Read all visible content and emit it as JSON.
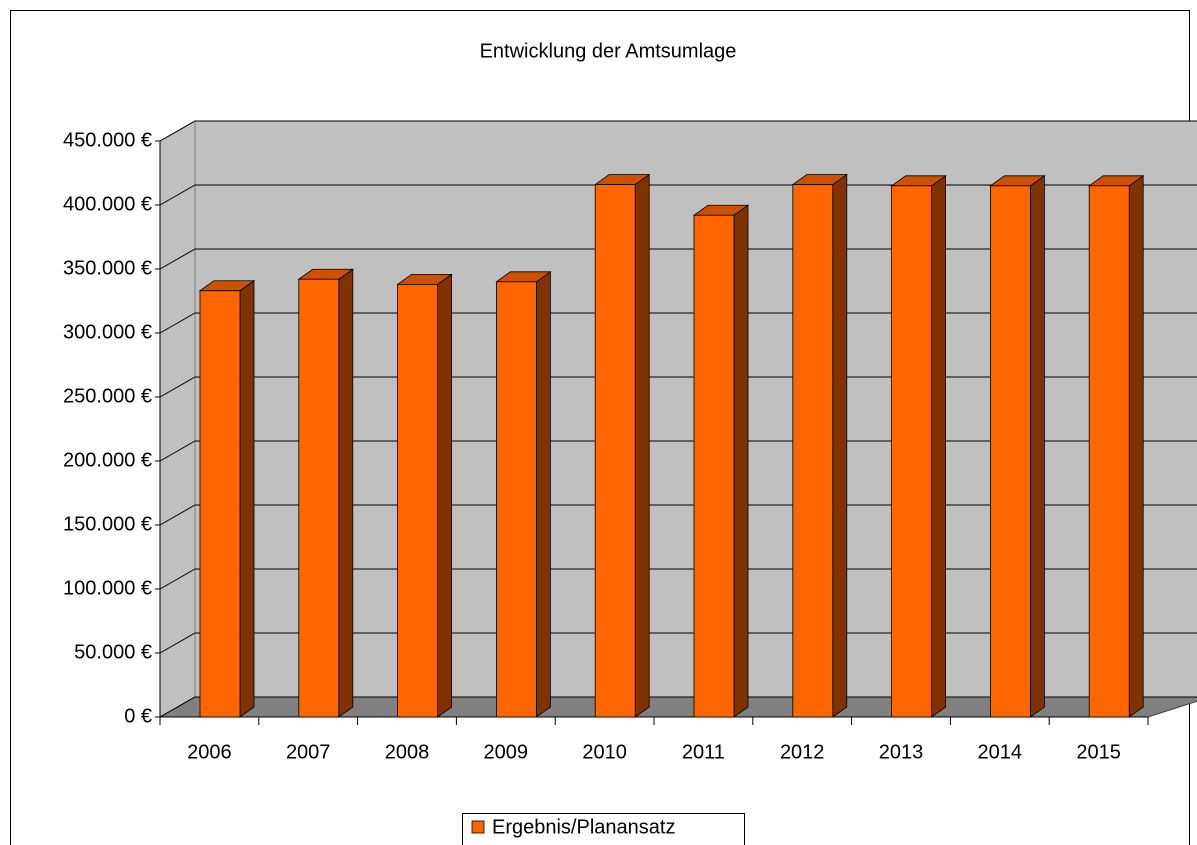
{
  "chart_data": {
    "type": "bar3d",
    "title": "Entwicklung der Amtsumlage",
    "categories": [
      "2006",
      "2007",
      "2008",
      "2009",
      "2010",
      "2011",
      "2012",
      "2013",
      "2014",
      "2015"
    ],
    "series": [
      {
        "name": "Ergebnis/Planansatz",
        "color": "#ff6600",
        "values": [
          333000,
          342000,
          338000,
          340000,
          416000,
          392000,
          416000,
          415000,
          415000,
          415000
        ]
      }
    ],
    "ylim": [
      0,
      450000
    ],
    "yticks": [
      {
        "value": 0,
        "label": "0 €"
      },
      {
        "value": 50000,
        "label": "50.000 €"
      },
      {
        "value": 100000,
        "label": "100.000 €"
      },
      {
        "value": 150000,
        "label": "150.000 €"
      },
      {
        "value": 200000,
        "label": "200.000 €"
      },
      {
        "value": 250000,
        "label": "250.000 €"
      },
      {
        "value": 300000,
        "label": "300.000 €"
      },
      {
        "value": 350000,
        "label": "350.000 €"
      },
      {
        "value": 400000,
        "label": "400.000 €"
      },
      {
        "value": 450000,
        "label": "450.000 €"
      }
    ],
    "grid": true,
    "legend": "bottom"
  }
}
